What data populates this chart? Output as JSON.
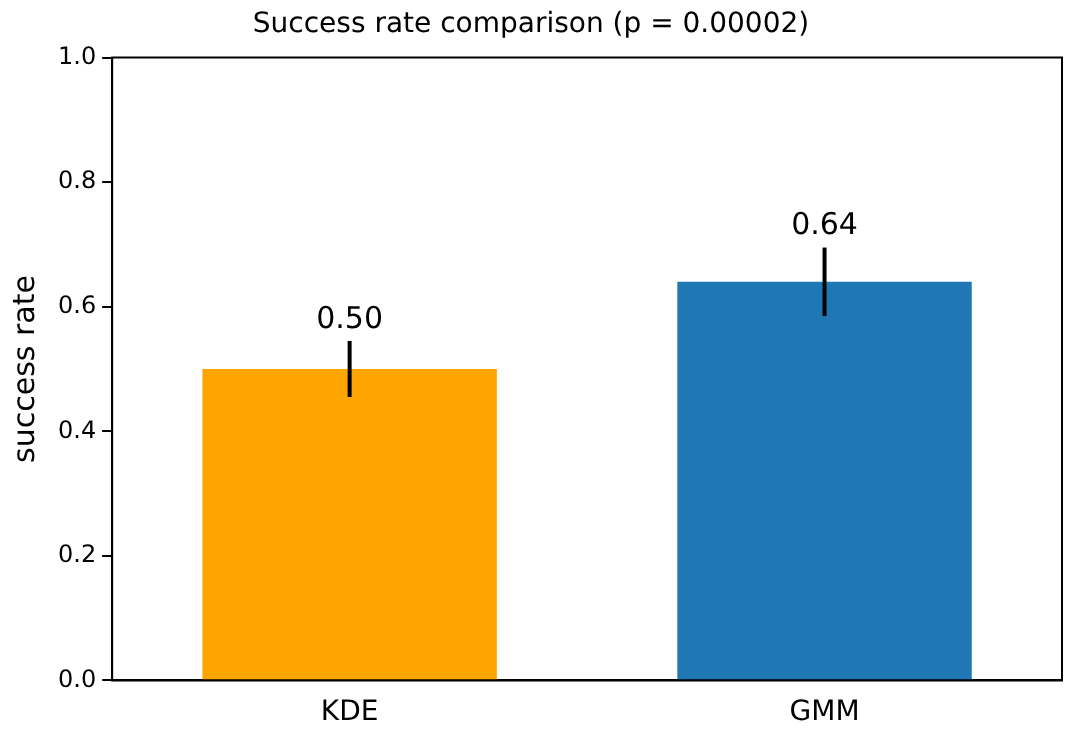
{
  "chart_data": {
    "type": "bar",
    "title": "Success rate comparison (p = 0.00002)",
    "ylabel": "success rate",
    "categories": [
      "KDE",
      "GMM"
    ],
    "values": [
      0.5,
      0.64
    ],
    "colors": [
      "#ffa500",
      "#1f77b4"
    ],
    "errors": [
      0.045,
      0.055
    ],
    "ylim": [
      0,
      1
    ],
    "yticks": [
      {
        "value": 0,
        "label": "0.0"
      },
      {
        "value": 0.2,
        "label": "0.2"
      },
      {
        "value": 0.4,
        "label": "0.4"
      },
      {
        "value": 0.6,
        "label": "0.6"
      },
      {
        "value": 0.8,
        "label": "0.8"
      },
      {
        "value": 1,
        "label": "1.0"
      }
    ],
    "value_labels": [
      "0.50",
      "0.64"
    ],
    "grid": false,
    "legend": false
  }
}
